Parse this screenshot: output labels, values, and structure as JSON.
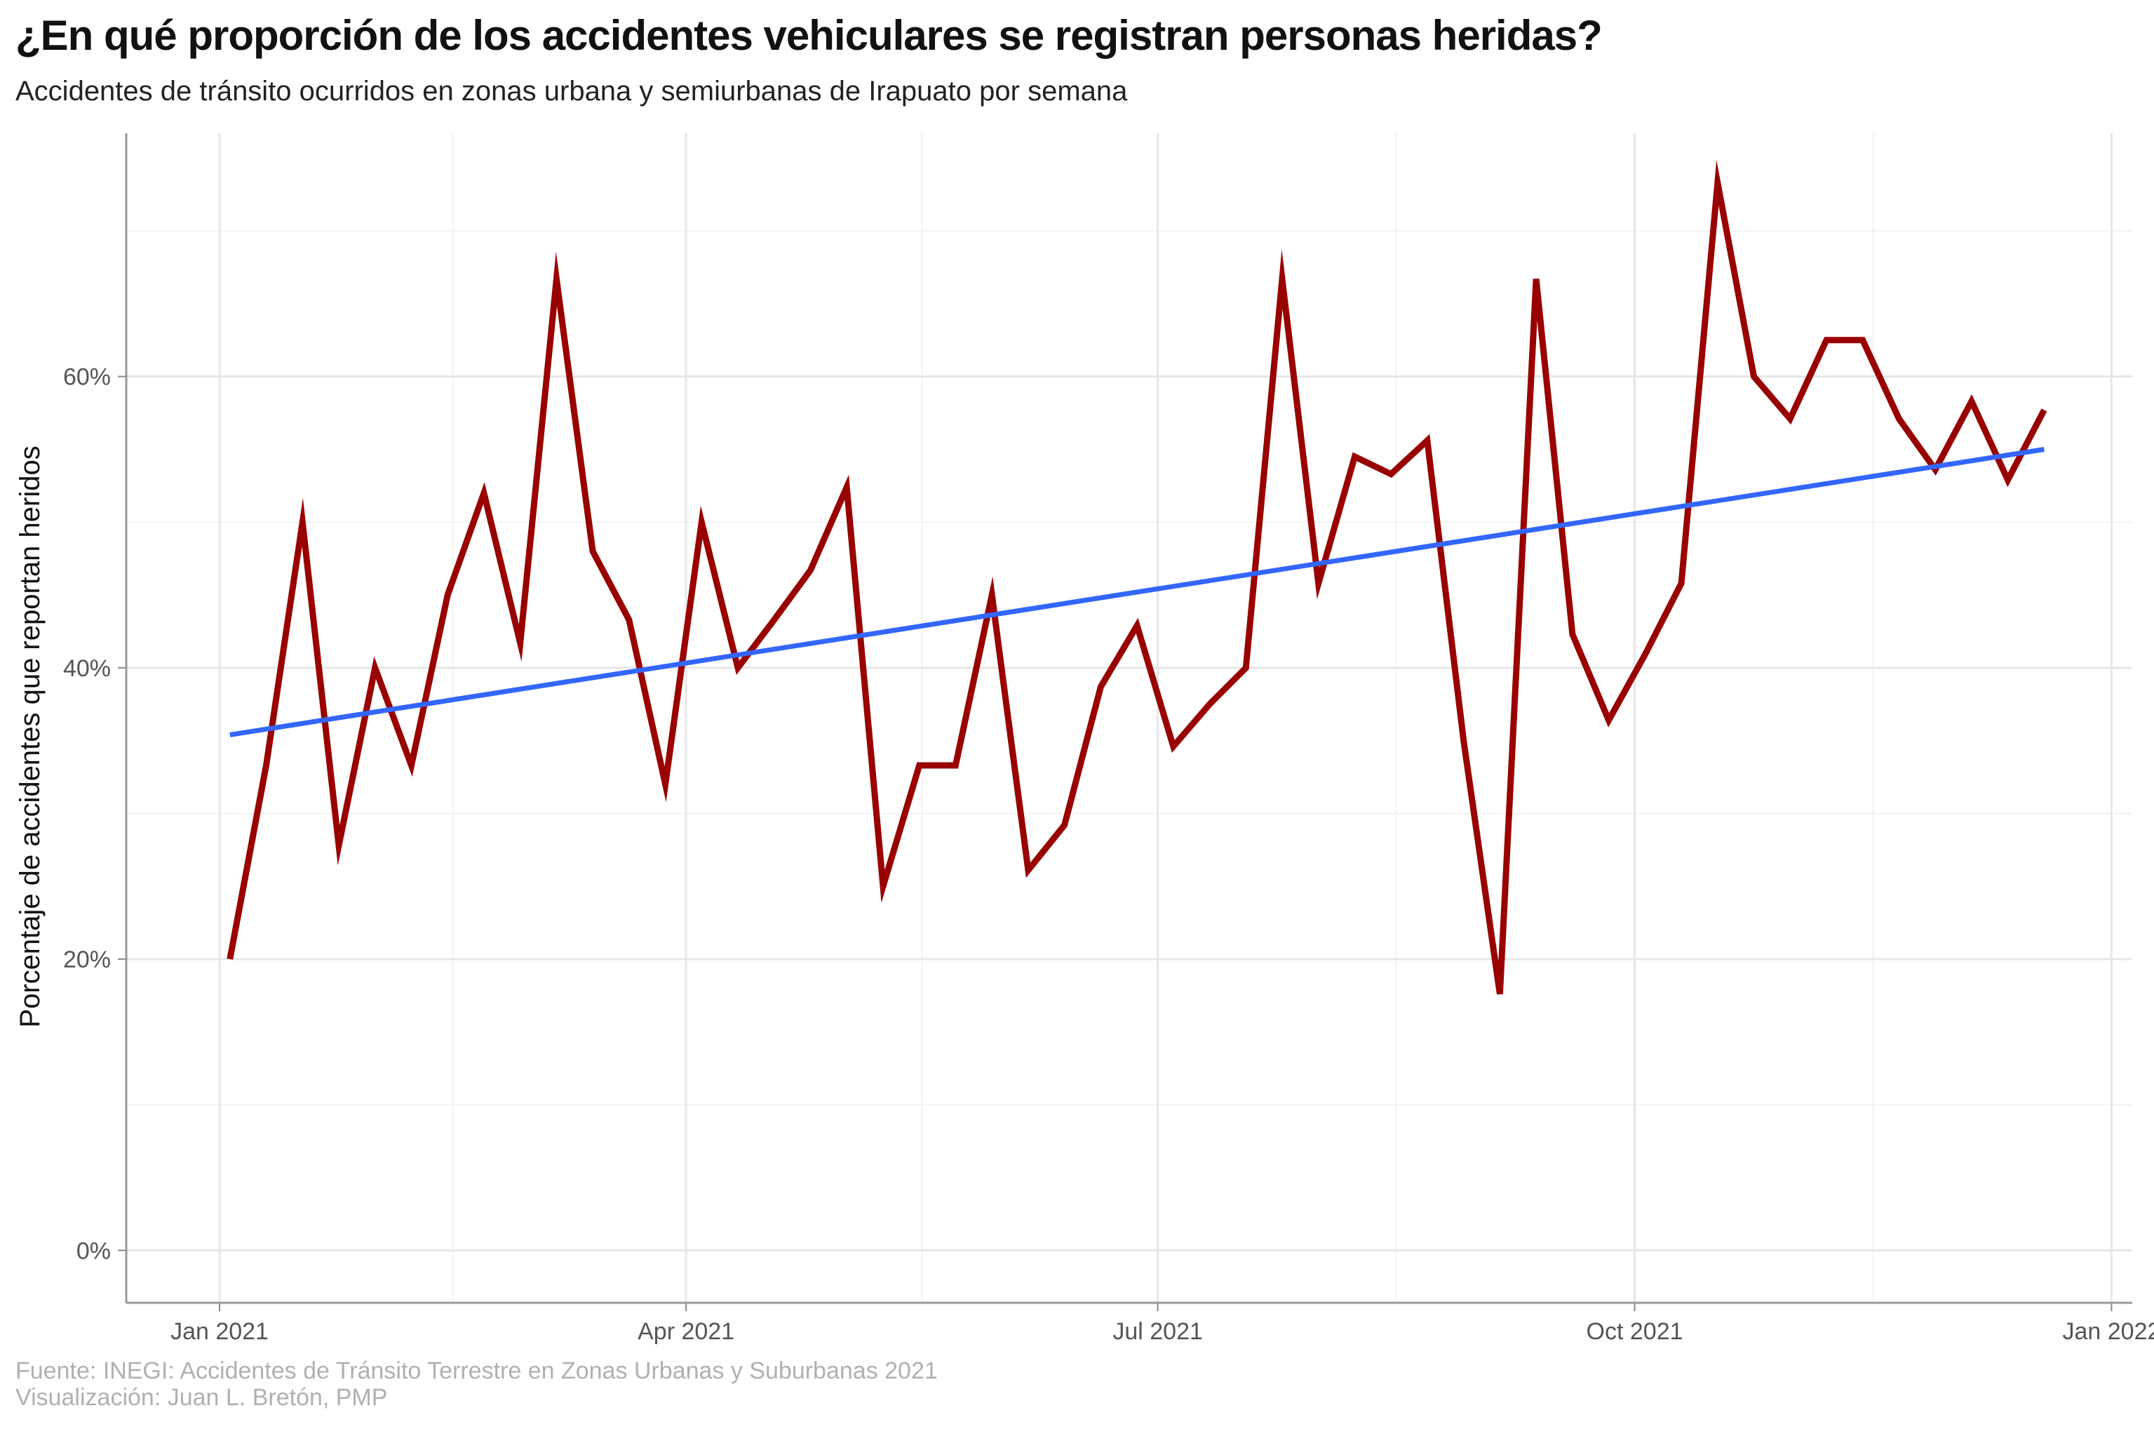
{
  "title": "¿En qué proporción de los accidentes vehiculares se registran personas heridas?",
  "subtitle": "Accidentes de tránsito ocurridos en zonas urbana y semiurbanas de Irapuato por semana",
  "caption_line1": "Fuente: INEGI: Accidentes de Tránsito Terrestre en Zonas Urbanas y Suburbanas 2021",
  "caption_line2": "Visualización: Juan L. Bretón, PMP",
  "chart_data": {
    "type": "line",
    "title": "¿En qué proporción de los accidentes vehiculares se registran personas heridas?",
    "xlabel": "",
    "ylabel": "Porcentaje de accidentes que reportan heridos",
    "x_tick_labels": [
      {
        "date": "2021-01-01",
        "label": "Jan 2021"
      },
      {
        "date": "2021-04-01",
        "label": "Apr 2021"
      },
      {
        "date": "2021-07-01",
        "label": "Jul 2021"
      },
      {
        "date": "2021-10-01",
        "label": "Oct 2021"
      },
      {
        "date": "2022-01-01",
        "label": "Jan 2022"
      }
    ],
    "y_ticks": [
      0,
      0.2,
      0.4,
      0.6
    ],
    "y_tick_labels": [
      "0%",
      "20%",
      "40%",
      "60%"
    ],
    "xlim": [
      "2020-12-14",
      "2022-01-05"
    ],
    "ylim": [
      -0.036,
      0.767
    ],
    "grid": true,
    "colors": {
      "series": "#990000",
      "trend": "#3366ff"
    },
    "series": [
      {
        "name": "",
        "x": [
          "2021-01-03",
          "2021-01-10",
          "2021-01-17",
          "2021-01-24",
          "2021-01-31",
          "2021-02-07",
          "2021-02-14",
          "2021-02-21",
          "2021-02-28",
          "2021-03-07",
          "2021-03-14",
          "2021-03-21",
          "2021-03-28",
          "2021-04-04",
          "2021-04-11",
          "2021-04-18",
          "2021-04-25",
          "2021-05-02",
          "2021-05-09",
          "2021-05-16",
          "2021-05-23",
          "2021-05-30",
          "2021-06-06",
          "2021-06-13",
          "2021-06-20",
          "2021-06-27",
          "2021-07-04",
          "2021-07-11",
          "2021-07-18",
          "2021-07-25",
          "2021-08-01",
          "2021-08-08",
          "2021-08-15",
          "2021-08-22",
          "2021-08-29",
          "2021-09-05",
          "2021-09-12",
          "2021-09-19",
          "2021-09-26",
          "2021-10-03",
          "2021-10-10",
          "2021-10-17",
          "2021-10-24",
          "2021-10-31",
          "2021-11-07",
          "2021-11-14",
          "2021-11-21",
          "2021-11-28",
          "2021-12-05",
          "2021-12-12",
          "2021-12-19"
        ],
        "values": [
          0.2,
          0.333,
          0.5,
          0.278,
          0.4,
          0.333,
          0.45,
          0.52,
          0.417,
          0.667,
          0.48,
          0.433,
          0.32,
          0.5,
          0.4,
          0.433,
          0.467,
          0.524,
          0.25,
          0.333,
          0.333,
          0.45,
          0.261,
          0.292,
          0.387,
          0.429,
          0.346,
          0.375,
          0.4,
          0.667,
          0.458,
          0.545,
          0.533,
          0.556,
          0.35,
          0.176,
          0.667,
          0.423,
          0.364,
          0.409,
          0.458,
          0.733,
          0.6,
          0.571,
          0.625,
          0.625,
          0.571,
          0.536,
          0.583,
          0.529,
          0.577
        ]
      },
      {
        "name": "",
        "x": [
          "2021-01-03",
          "2021-12-19"
        ],
        "values": [
          0.354,
          0.55
        ]
      }
    ]
  }
}
